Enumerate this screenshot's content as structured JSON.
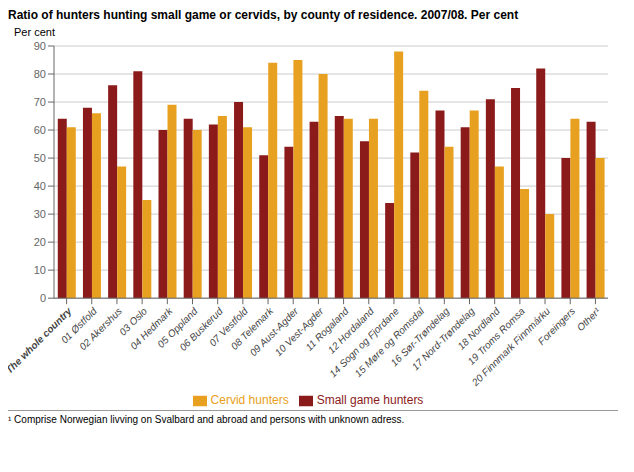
{
  "chart_data": {
    "type": "bar",
    "title": "Ratio of hunters hunting small game or cervids, by county of residence. 2007/08. Per cent",
    "y_label": "Per cent",
    "annotations": [
      "¹ Comprise Norwegian livving on Svalbard and abroad and persons with unknown adress."
    ],
    "categories": [
      "The whole country",
      "01 Østfold",
      "02 Akershus",
      "03 Oslo",
      "04 Hedmark",
      "05 Oppland",
      "06 Buskerud",
      "07 Vestfold",
      "08 Telemark",
      "09 Aust-Agder",
      "10 Vest-Agder",
      "11 Rogaland",
      "12 Hordaland",
      "14 Sogn og Fjordane",
      "15 Møre og Romsdal",
      "16 Sør-Trøndelag",
      "17 Nord-Trøndelag",
      "18 Nordland",
      "19 Troms Romsa",
      "20 Finnmark Finnmárku",
      "Foreingers",
      "Other¹"
    ],
    "series": [
      {
        "name": "Small game hunters",
        "color": "#8B1A1A",
        "values": [
          64,
          68,
          76,
          81,
          60,
          64,
          62,
          70,
          51,
          54,
          63,
          65,
          56,
          34,
          52,
          67,
          61,
          71,
          75,
          82,
          50,
          63
        ]
      },
      {
        "name": "Cervid hunters",
        "color": "#E8A020",
        "values": [
          61,
          66,
          47,
          35,
          69,
          60,
          65,
          61,
          84,
          85,
          80,
          64,
          64,
          88,
          74,
          54,
          67,
          47,
          39,
          30,
          64,
          50
        ]
      }
    ],
    "ylim": [
      0,
      90
    ],
    "yticks": [
      0,
      10,
      20,
      30,
      40,
      50,
      60,
      70,
      80,
      90
    ],
    "grid": true,
    "legend": "bottom"
  }
}
